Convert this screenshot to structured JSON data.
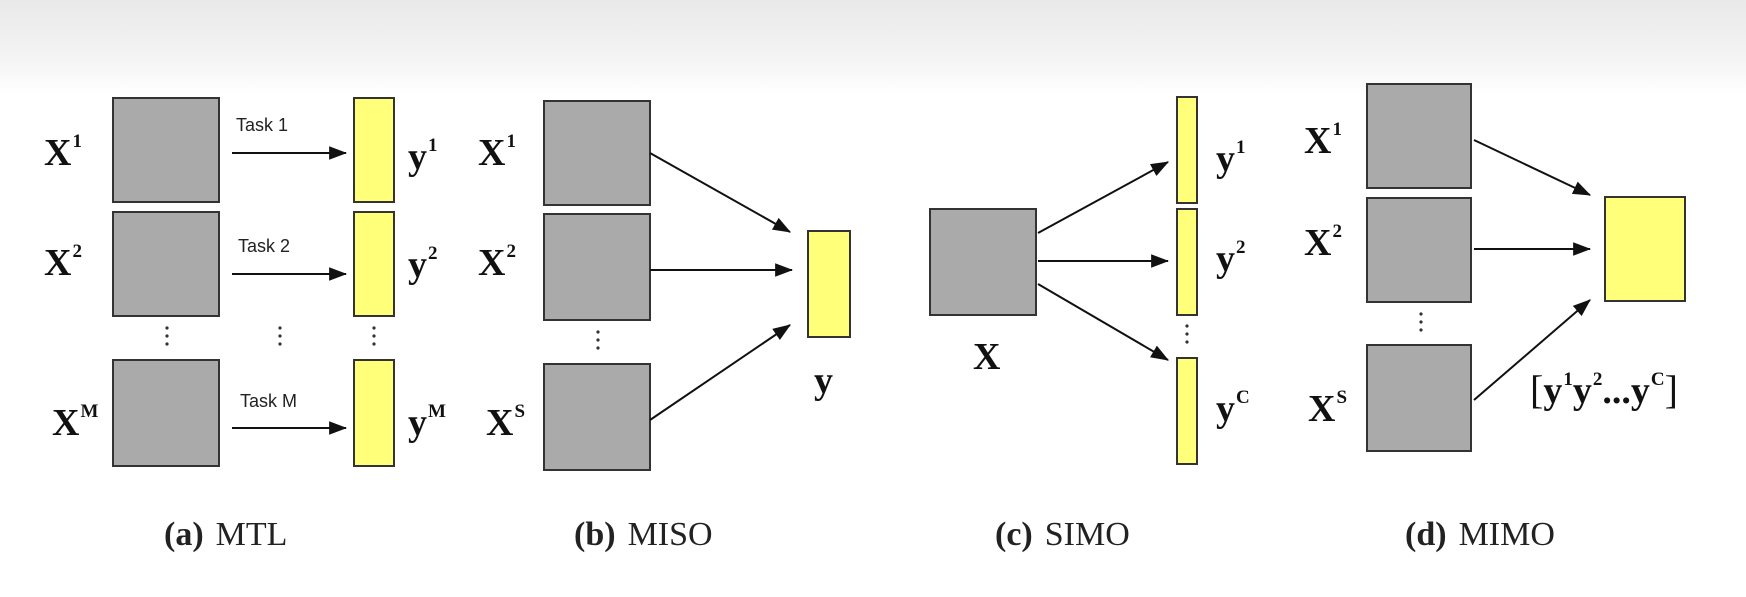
{
  "panel_a": {
    "inputs": [
      {
        "base": "X",
        "sup": "1"
      },
      {
        "base": "X",
        "sup": "2"
      },
      {
        "base": "X",
        "sup": "M"
      }
    ],
    "outputs": [
      {
        "base": "y",
        "sup": "1"
      },
      {
        "base": "y",
        "sup": "2"
      },
      {
        "base": "y",
        "sup": "M"
      }
    ],
    "tasks": [
      "Task 1",
      "Task 2",
      "Task M"
    ],
    "caption_tag": "(a)",
    "caption_name": "MTL"
  },
  "panel_b": {
    "inputs": [
      {
        "base": "X",
        "sup": "1"
      },
      {
        "base": "X",
        "sup": "2"
      },
      {
        "base": "X",
        "sup": "S"
      }
    ],
    "output": "y",
    "caption_tag": "(b)",
    "caption_name": "MISO"
  },
  "panel_c": {
    "input": "X",
    "outputs": [
      {
        "base": "y",
        "sup": "1"
      },
      {
        "base": "y",
        "sup": "2"
      },
      {
        "base": "y",
        "sup": "C"
      }
    ],
    "caption_tag": "(c)",
    "caption_name": "SIMO"
  },
  "panel_d": {
    "inputs": [
      {
        "base": "X",
        "sup": "1"
      },
      {
        "base": "X",
        "sup": "2"
      },
      {
        "base": "X",
        "sup": "S"
      }
    ],
    "output_vector": {
      "open": "[",
      "items": [
        {
          "base": "y",
          "sup": "1"
        },
        {
          "base": "y",
          "sup": "2"
        }
      ],
      "ellipsis": "...",
      "last": {
        "base": "y",
        "sup": "C"
      },
      "close": "]"
    },
    "caption_tag": "(d)",
    "caption_name": "MIMO"
  },
  "colors": {
    "input_block": "#aaaaaa",
    "output_block": "#ffff7a",
    "stroke": "#333333"
  }
}
